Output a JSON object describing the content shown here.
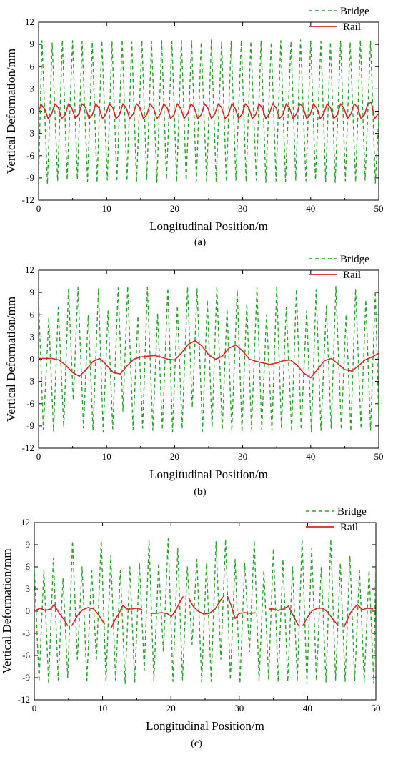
{
  "legend_entries": {
    "bridge": "Bridge",
    "rail": "Rail"
  },
  "chart_data": [
    {
      "type": "line",
      "panel_caption": "(a)",
      "caption_open": "(",
      "caption_letter": "a",
      "caption_close": ")",
      "xlabel": "Longitudinal Position/m",
      "ylabel": "Vertical Deformation/mm",
      "xlim": [
        0,
        50
      ],
      "ylim": [
        -12,
        12
      ],
      "xticks": [
        0,
        10,
        20,
        30,
        40,
        50
      ],
      "yticks": [
        -12,
        -9,
        -6,
        -3,
        0,
        3,
        6,
        9,
        12
      ],
      "legend": [
        "Bridge",
        "Rail"
      ],
      "legend_position": "top-right",
      "grid": false,
      "series": [
        {
          "name": "Bridge",
          "style": "dashed",
          "color": "#2ca02c",
          "x": [
            0,
            0.5,
            1.3,
            2.0,
            2.8,
            3.5,
            4.2,
            5.0,
            5.7,
            6.4,
            7.2,
            7.9,
            8.6,
            9.3,
            10.1,
            10.8,
            11.5,
            12.3,
            13.0,
            13.7,
            14.4,
            15.2,
            15.9,
            16.6,
            17.4,
            18.1,
            18.8,
            19.6,
            20.3,
            21.0,
            21.7,
            22.5,
            23.2,
            23.9,
            24.7,
            25.4,
            26.1,
            26.9,
            27.6,
            28.3,
            29.0,
            29.8,
            30.5,
            31.2,
            32.0,
            32.7,
            33.4,
            34.2,
            34.9,
            35.6,
            36.3,
            37.1,
            37.8,
            38.5,
            39.3,
            40.0,
            40.7,
            41.5,
            42.2,
            42.9,
            43.6,
            44.4,
            45.1,
            45.8,
            46.6,
            47.3,
            48.0,
            48.8,
            49.5,
            50.0
          ],
          "y": [
            -9.0,
            9.5,
            -9.8,
            9.2,
            -9.4,
            9.6,
            -9.3,
            9.5,
            -9.2,
            9.4,
            -9.5,
            9.3,
            -9.6,
            9.5,
            -9.3,
            9.4,
            -9.5,
            9.6,
            -9.4,
            9.3,
            -9.5,
            9.5,
            -9.3,
            9.4,
            -9.6,
            9.5,
            -9.2,
            9.4,
            -9.5,
            9.6,
            -9.3,
            9.5,
            -9.4,
            9.3,
            -9.5,
            9.6,
            -9.4,
            9.3,
            -9.5,
            9.4,
            -9.3,
            9.6,
            -9.5,
            9.4,
            -9.3,
            9.5,
            -9.6,
            9.3,
            -9.4,
            9.5,
            -9.5,
            9.4,
            -9.3,
            9.6,
            -9.4,
            9.5,
            -9.3,
            9.4,
            -9.5,
            9.3,
            -9.6,
            9.5,
            -9.4,
            9.3,
            -9.5,
            9.6,
            -9.3,
            9.4,
            -9.7,
            -1.0
          ]
        },
        {
          "name": "Rail",
          "style": "solid",
          "color": "#d62728",
          "x": [
            0,
            0.4,
            0.9,
            1.4,
            1.9,
            2.4,
            2.9,
            3.4,
            3.9,
            4.4,
            4.9,
            5.4,
            5.9,
            6.4,
            6.9,
            7.4,
            7.9,
            8.4,
            8.9,
            9.4,
            9.9,
            10.4,
            10.9,
            11.4,
            11.9,
            12.4,
            12.9,
            13.4,
            13.9,
            14.4,
            14.9,
            15.4,
            15.9,
            16.4,
            16.9,
            17.4,
            17.9,
            18.4,
            18.9,
            19.4,
            19.9,
            20.4,
            20.9,
            21.4,
            21.9,
            22.4,
            22.9,
            23.4,
            23.9,
            24.4,
            24.9,
            25.4,
            25.9,
            26.4,
            26.9,
            27.4,
            27.9,
            28.4,
            28.9,
            29.4,
            29.9,
            30.4,
            30.9,
            31.4,
            31.9,
            32.4,
            32.9,
            33.4,
            33.9,
            34.4,
            34.9,
            35.4,
            35.9,
            36.4,
            36.9,
            37.4,
            37.9,
            38.4,
            38.9,
            39.4,
            39.9,
            40.4,
            40.9,
            41.4,
            41.9,
            42.4,
            42.9,
            43.4,
            43.9,
            44.4,
            44.9,
            45.4,
            45.9,
            46.4,
            46.9,
            47.4,
            47.9,
            48.4,
            48.9,
            49.4,
            49.9,
            50.0
          ],
          "y": [
            0,
            0.9,
            0.3,
            -1.0,
            -0.4,
            1.0,
            0.5,
            -1.0,
            -0.5,
            1.0,
            0.4,
            -1.0,
            -0.4,
            1.0,
            0.5,
            -1.0,
            -0.5,
            1.0,
            0.4,
            -1.0,
            -0.4,
            1.0,
            0.5,
            -1.0,
            -0.5,
            1.0,
            0.4,
            -1.0,
            -0.4,
            1.0,
            0.5,
            -1.0,
            -0.5,
            1.0,
            0.4,
            -1.0,
            -0.4,
            1.0,
            0.5,
            -1.0,
            -0.5,
            1.0,
            0.4,
            -1.0,
            -0.4,
            1.0,
            0.5,
            -1.0,
            -0.5,
            1.0,
            0.4,
            -1.0,
            -0.4,
            1.0,
            0.5,
            -1.0,
            -0.5,
            1.0,
            0.4,
            -1.0,
            -0.4,
            1.0,
            0.5,
            -1.0,
            -0.5,
            1.0,
            0.4,
            -1.0,
            -0.4,
            1.0,
            0.5,
            -1.0,
            -0.5,
            1.0,
            0.4,
            -1.0,
            -0.4,
            1.0,
            0.5,
            -1.0,
            -0.5,
            1.0,
            0.4,
            -1.0,
            -0.4,
            1.0,
            0.5,
            -1.0,
            -0.5,
            1.0,
            0.4,
            -1.0,
            -0.4,
            1.0,
            0.5,
            -1.0,
            -0.5,
            1.0,
            1.2,
            -1.0,
            -0.4,
            -0.3
          ]
        }
      ]
    },
    {
      "type": "line",
      "panel_caption": "(b)",
      "caption_open": "(",
      "caption_letter": "b",
      "caption_close": ")",
      "xlabel": "Longitudinal Position/m",
      "ylabel": "Vertical Deformation/mm",
      "xlim": [
        0,
        50
      ],
      "ylim": [
        -12,
        12
      ],
      "xticks": [
        0,
        10,
        20,
        30,
        40,
        50
      ],
      "yticks": [
        -12,
        -9,
        -6,
        -3,
        0,
        3,
        6,
        9,
        12
      ],
      "legend": [
        "Bridge",
        "Rail"
      ],
      "legend_position": "top-right",
      "grid": false,
      "series": [
        {
          "name": "Bridge",
          "style": "dashed",
          "color": "#2ca02c",
          "x": [
            0,
            0.7,
            1.5,
            2.2,
            2.9,
            3.7,
            4.4,
            5.1,
            5.8,
            6.6,
            7.3,
            8.0,
            8.8,
            9.5,
            10.2,
            10.9,
            11.7,
            12.4,
            13.1,
            13.9,
            14.6,
            15.3,
            16.0,
            16.8,
            17.5,
            18.2,
            19.0,
            19.7,
            20.4,
            21.1,
            21.9,
            22.6,
            23.3,
            24.1,
            24.8,
            25.5,
            26.2,
            27.0,
            27.7,
            28.4,
            29.2,
            29.9,
            30.6,
            31.3,
            32.1,
            32.8,
            33.5,
            34.3,
            35.0,
            35.7,
            36.4,
            37.2,
            37.9,
            38.6,
            39.4,
            40.1,
            40.8,
            41.5,
            42.3,
            43.0,
            43.7,
            44.5,
            45.2,
            45.9,
            46.6,
            47.4,
            48.1,
            48.8,
            49.5,
            50.0
          ],
          "y": [
            8.0,
            -9.5,
            5.5,
            -9.7,
            7.0,
            -9.2,
            9.5,
            -5.5,
            9.7,
            -9.3,
            6.0,
            -9.6,
            9.5,
            -9.8,
            6.5,
            -9.4,
            9.6,
            -7.0,
            9.8,
            -9.5,
            5.8,
            -9.3,
            9.7,
            -9.6,
            6.2,
            -9.5,
            9.6,
            -9.8,
            7.2,
            -9.4,
            9.7,
            -6.5,
            9.5,
            -9.7,
            8.0,
            -9.3,
            9.8,
            -9.5,
            6.8,
            -9.6,
            9.4,
            -9.8,
            7.5,
            -9.4,
            9.7,
            -9.5,
            6.0,
            -9.6,
            9.8,
            -9.3,
            7.0,
            -9.7,
            9.5,
            -9.5,
            6.5,
            -9.8,
            9.4,
            -9.6,
            7.2,
            -9.3,
            9.8,
            -9.5,
            6.0,
            -9.7,
            9.5,
            -9.4,
            8.0,
            -9.6,
            9.2,
            -7.8
          ]
        },
        {
          "name": "Rail",
          "style": "solid",
          "color": "#d62728",
          "x": [
            0,
            1,
            2,
            3,
            4,
            5,
            6,
            7,
            8,
            9,
            10,
            11,
            12,
            13,
            14,
            15,
            16,
            17,
            18,
            19,
            20,
            21,
            22,
            23,
            24,
            25,
            26,
            27,
            28,
            29,
            30,
            31,
            32,
            33,
            34,
            35,
            36,
            37,
            38,
            39,
            40,
            41,
            42,
            43,
            44,
            45,
            46,
            47,
            48,
            49,
            50
          ],
          "y": [
            0.1,
            0.1,
            0.1,
            -0.1,
            -0.8,
            -1.8,
            -2.3,
            -1.4,
            -0.3,
            0.1,
            -0.8,
            -1.8,
            -2.0,
            -0.9,
            0,
            0.3,
            0.4,
            0.5,
            0.3,
            0,
            -0.1,
            0.8,
            2.0,
            2.5,
            1.8,
            0.6,
            0,
            0.4,
            1.5,
            1.9,
            1.1,
            0,
            -0.3,
            -0.5,
            -0.7,
            -0.5,
            -0.2,
            -0.1,
            -0.8,
            -1.9,
            -2.5,
            -1.4,
            -0.2,
            0.1,
            -0.6,
            -1.4,
            -1.6,
            -0.9,
            -0.1,
            0.3,
            0.8
          ]
        }
      ]
    },
    {
      "type": "line",
      "panel_caption": "(c)",
      "caption_open": "(",
      "caption_letter": "c",
      "caption_close": ")",
      "xlabel": "Longitudinal Position/m",
      "ylabel": "Vertical Deformation/mm",
      "xlim": [
        0,
        50
      ],
      "ylim": [
        -12,
        12
      ],
      "xticks": [
        0,
        10,
        20,
        30,
        40,
        50
      ],
      "yticks": [
        -12,
        -9,
        -6,
        -3,
        0,
        3,
        6,
        9,
        12
      ],
      "legend": [
        "Bridge",
        "Rail"
      ],
      "legend_position": "top-right",
      "grid": false,
      "series": [
        {
          "name": "Bridge",
          "style": "dashed",
          "color": "#2ca02c",
          "x": [
            0,
            0.7,
            1.4,
            2.1,
            2.8,
            3.5,
            4.2,
            4.9,
            5.6,
            6.3,
            7.0,
            7.7,
            8.4,
            9.1,
            9.8,
            10.5,
            11.2,
            11.9,
            12.6,
            13.3,
            14.0,
            14.7,
            15.4,
            16.1,
            16.8,
            17.5,
            18.2,
            18.9,
            19.6,
            20.3,
            21.0,
            21.7,
            22.4,
            23.1,
            23.8,
            24.5,
            25.2,
            25.9,
            26.6,
            27.3,
            28.0,
            28.7,
            29.4,
            30.1,
            30.8,
            31.5,
            32.2,
            32.9,
            33.6,
            34.3,
            35.0,
            35.7,
            36.4,
            37.1,
            37.8,
            38.5,
            39.2,
            39.9,
            40.6,
            41.3,
            42.0,
            42.7,
            43.4,
            44.1,
            44.8,
            45.5,
            46.2,
            46.9,
            47.6,
            48.3,
            49.0,
            49.7,
            50.0
          ],
          "y": [
            6.0,
            -9.5,
            5.5,
            -9.8,
            7.2,
            -9.3,
            4.5,
            -9.0,
            9.5,
            -6.5,
            6.0,
            -9.4,
            5.5,
            -6.5,
            9.6,
            -9.5,
            7.5,
            -9.3,
            5.5,
            -9.8,
            6.0,
            -9.6,
            6.5,
            -8.0,
            9.7,
            -9.4,
            6.5,
            -5.5,
            9.8,
            -9.5,
            8.5,
            -9.3,
            6.0,
            -4.5,
            7.0,
            -9.6,
            6.5,
            -9.5,
            9.4,
            -6.5,
            9.7,
            -9.3,
            7.0,
            -9.8,
            6.5,
            -5.5,
            9.6,
            -9.4,
            5.5,
            -9.2,
            8.5,
            -9.6,
            7.0,
            -9.5,
            6.0,
            -9.3,
            9.7,
            -9.8,
            8.5,
            -9.4,
            6.0,
            -9.6,
            9.7,
            -9.3,
            6.5,
            -9.5,
            7.5,
            -9.4,
            5.5,
            -9.6,
            5.5,
            -9.8,
            7.5
          ]
        },
        {
          "name": "Rail",
          "style": "solid",
          "color": "#d62728",
          "segments": [
            {
              "x": [
                0,
                0.8,
                1.6,
                2.4,
                2.9,
                3.6,
                4.4,
                4.9
              ],
              "y": [
                0,
                0.4,
                0.1,
                0.3,
                0.9,
                -0.2,
                -1.2,
                -2.0
              ]
            },
            {
              "x": [
                5.5,
                6.3,
                7.1,
                7.9,
                8.7,
                9.5,
                10.3
              ],
              "y": [
                -2.0,
                -0.6,
                0.2,
                0.5,
                0.3,
                -0.6,
                -1.8
              ]
            },
            {
              "x": [
                11.3,
                11.8,
                12.4,
                13.0,
                13.5,
                14.2,
                15.0,
                15.8
              ],
              "y": [
                -2.2,
                -1.2,
                -0.3,
                0.8,
                0.3,
                0.3,
                0.4,
                0.2
              ]
            },
            {
              "x": [
                17.0,
                17.8,
                18.6,
                19.4,
                20.1,
                20.7,
                21.3,
                21.8
              ],
              "y": [
                -0.3,
                -0.3,
                -0.2,
                -0.3,
                -0.7,
                0.1,
                1.2,
                2.0
              ]
            },
            {
              "x": [
                22.6,
                23.3,
                24.0,
                24.8,
                25.6,
                26.4,
                27.0,
                27.6
              ],
              "y": [
                1.8,
                0.6,
                0,
                -0.4,
                -0.3,
                0.2,
                1.1,
                1.9
              ]
            },
            {
              "x": [
                28.3,
                28.8,
                29.4,
                30.0,
                30.8,
                31.6,
                32.4
              ],
              "y": [
                2.0,
                0.8,
                -1.0,
                -0.3,
                -0.2,
                -0.3,
                -0.2
              ]
            },
            {
              "x": [
                34.3,
                35.0,
                35.7,
                36.5,
                37.2,
                37.9,
                38.7
              ],
              "y": [
                0.3,
                0.3,
                0.1,
                0.3,
                0.7,
                -0.6,
                -2.0
              ]
            },
            {
              "x": [
                39.3,
                40.0,
                40.7,
                41.5,
                42.3,
                43.0,
                43.8,
                44.5
              ],
              "y": [
                -2.0,
                -0.8,
                0.1,
                0.4,
                0.4,
                -0.2,
                -1.2,
                -2.0
              ]
            },
            {
              "x": [
                45.3,
                45.8,
                46.3,
                46.8,
                47.3,
                48.0,
                48.8,
                49.6
              ],
              "y": [
                -2.2,
                -1.2,
                -0.2,
                0.4,
                0.9,
                0.2,
                0.4,
                0.3
              ]
            }
          ]
        }
      ]
    }
  ]
}
